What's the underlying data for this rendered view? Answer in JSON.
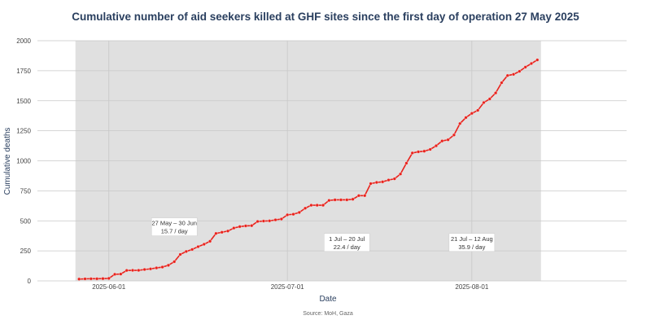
{
  "chart_data": {
    "type": "line",
    "title": "Cumulative number of aid seekers killed at GHF sites since the first day of operation 27 May 2025",
    "xlabel": "Date",
    "ylabel": "Cumulative deaths",
    "source": "Source: MoH, Gaza",
    "x_ticks": [
      {
        "date": "2025-06-01",
        "label": "2025-06-01"
      },
      {
        "date": "2025-07-01",
        "label": "2025-07-01"
      },
      {
        "date": "2025-08-01",
        "label": "2025-08-01"
      }
    ],
    "y_ticks": [
      0,
      250,
      500,
      750,
      1000,
      1250,
      1500,
      1750,
      2000
    ],
    "ylim": [
      0,
      2000
    ],
    "xlim": [
      "2025-05-20",
      "2025-08-27"
    ],
    "grid": true,
    "line_color": "#e8231d",
    "band_color": "#e0e0e0",
    "periods": [
      {
        "start": "2025-05-27",
        "end": "2025-06-30",
        "label_line1": "27 May – 30 Jun",
        "label_line2": "15.7 / day",
        "label_date": "2025-06-12",
        "label_y": 450
      },
      {
        "start": "2025-07-01",
        "end": "2025-07-20",
        "label_line1": "1 Jul – 20 Jul",
        "label_line2": "22.4 / day",
        "label_date": "2025-07-11",
        "label_y": 320
      },
      {
        "start": "2025-07-21",
        "end": "2025-08-12",
        "label_line1": "21 Jul – 12 Aug",
        "label_line2": "35.9 / day",
        "label_date": "2025-08-01",
        "label_y": 320
      }
    ],
    "series": [
      {
        "x": [
          "2025-05-27",
          "2025-05-28",
          "2025-05-29",
          "2025-05-30",
          "2025-05-31",
          "2025-06-01",
          "2025-06-02",
          "2025-06-03",
          "2025-06-04",
          "2025-06-05",
          "2025-06-06",
          "2025-06-07",
          "2025-06-08",
          "2025-06-09",
          "2025-06-10",
          "2025-06-11",
          "2025-06-12",
          "2025-06-13",
          "2025-06-14",
          "2025-06-15",
          "2025-06-16",
          "2025-06-17",
          "2025-06-18",
          "2025-06-19",
          "2025-06-20",
          "2025-06-21",
          "2025-06-22",
          "2025-06-23",
          "2025-06-24",
          "2025-06-25",
          "2025-06-26",
          "2025-06-27",
          "2025-06-28",
          "2025-06-29",
          "2025-06-30",
          "2025-07-01",
          "2025-07-02",
          "2025-07-03",
          "2025-07-04",
          "2025-07-05",
          "2025-07-06",
          "2025-07-07",
          "2025-07-08",
          "2025-07-09",
          "2025-07-10",
          "2025-07-11",
          "2025-07-12",
          "2025-07-13",
          "2025-07-14",
          "2025-07-15",
          "2025-07-16",
          "2025-07-17",
          "2025-07-18",
          "2025-07-19",
          "2025-07-20",
          "2025-07-21",
          "2025-07-22",
          "2025-07-23",
          "2025-07-24",
          "2025-07-25",
          "2025-07-26",
          "2025-07-27",
          "2025-07-28",
          "2025-07-29",
          "2025-07-30",
          "2025-07-31",
          "2025-08-01",
          "2025-08-02",
          "2025-08-03",
          "2025-08-04",
          "2025-08-05",
          "2025-08-06",
          "2025-08-07",
          "2025-08-08",
          "2025-08-09",
          "2025-08-10",
          "2025-08-11",
          "2025-08-12"
        ],
        "y": [
          15,
          17,
          18,
          18,
          19,
          21,
          55,
          57,
          87,
          88,
          88,
          95,
          100,
          108,
          115,
          130,
          160,
          220,
          245,
          262,
          285,
          305,
          330,
          395,
          405,
          415,
          440,
          452,
          458,
          460,
          495,
          498,
          500,
          508,
          515,
          550,
          555,
          570,
          605,
          630,
          630,
          630,
          670,
          675,
          675,
          675,
          680,
          710,
          710,
          810,
          820,
          825,
          840,
          850,
          890,
          980,
          1065,
          1075,
          1080,
          1095,
          1125,
          1165,
          1175,
          1215,
          1310,
          1360,
          1395,
          1420,
          1485,
          1515,
          1565,
          1650,
          1710,
          1720,
          1745,
          1780,
          1810,
          1840
        ]
      }
    ]
  }
}
